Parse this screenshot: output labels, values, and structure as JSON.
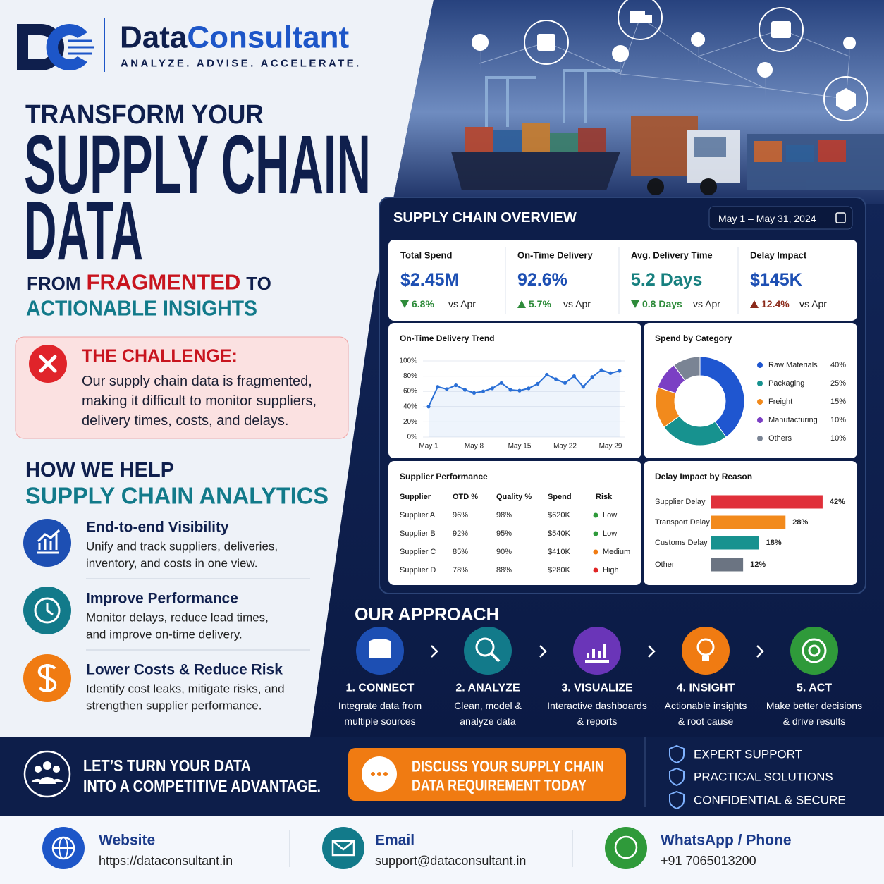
{
  "brand": {
    "name_a": "Data",
    "name_b": "Consultant",
    "tagline": "ANALYZE. ADVISE. ACCELERATE."
  },
  "hero": {
    "line_1": "TRANSFORM YOUR",
    "line_2": "SUPPLY CHAIN",
    "line_3": "DATA",
    "from": "FROM",
    "fragmented": "FRAGMENTED",
    "to": "TO",
    "insights": "ACTIONABLE INSIGHTS"
  },
  "challenge": {
    "title": "THE CHALLENGE:",
    "lines": [
      "Our supply chain data is fragmented,",
      "making it difficult to monitor suppliers,",
      "delivery times, costs, and delays."
    ]
  },
  "help": {
    "title": "HOW WE HELP",
    "subtitle": "SUPPLY CHAIN ANALYTICS",
    "items": [
      {
        "title": "End-to-end Visibility",
        "lines": [
          "Unify and track suppliers, deliveries,",
          "inventory, and costs in one view."
        ]
      },
      {
        "title": "Improve Performance",
        "lines": [
          "Monitor delays, reduce lead times,",
          "and improve on-time delivery."
        ]
      },
      {
        "title": "Lower Costs & Reduce Risk",
        "lines": [
          "Identify cost leaks, mitigate risks, and",
          "strengthen supplier performance."
        ]
      }
    ]
  },
  "dashboard": {
    "title": "SUPPLY CHAIN OVERVIEW",
    "date_range": "May 1 – May 31, 2024",
    "kpis": [
      {
        "label": "Total Spend",
        "value": "$2.45M",
        "change": "6.8%",
        "trend": "down",
        "compare": "vs Apr",
        "value_color": "#1d4fb3",
        "change_color": "#2e8b3a"
      },
      {
        "label": "On-Time Delivery",
        "value": "92.6%",
        "change": "5.7%",
        "trend": "up",
        "compare": "vs Apr",
        "value_color": "#1d4fb3",
        "change_color": "#2e8b3a"
      },
      {
        "label": "Avg. Delivery Time",
        "value": "5.2 Days",
        "change": "0.8 Days",
        "trend": "down",
        "compare": "vs Apr",
        "value_color": "#17807f",
        "change_color": "#2e8b3a"
      },
      {
        "label": "Delay Impact",
        "value": "$145K",
        "change": "12.4%",
        "trend": "up",
        "compare": "vs Apr",
        "value_color": "#1d4fb3",
        "change_color": "#8b2a1a"
      }
    ],
    "delivery_trend": {
      "type": "line",
      "title": "On-Time Delivery Trend",
      "categories": [
        "May 1",
        null,
        null,
        null,
        null,
        "May 8",
        null,
        null,
        null,
        null,
        "May 15",
        null,
        null,
        null,
        null,
        "May 22",
        null,
        null,
        null,
        null,
        "May 29",
        null
      ],
      "values": [
        40,
        66,
        63,
        68,
        62,
        58,
        60,
        64,
        71,
        62,
        61,
        64,
        70,
        82,
        76,
        71,
        80,
        66,
        79,
        88,
        84,
        87
      ],
      "ylim": [
        0,
        100
      ],
      "yticks": [
        {
          "value": 0,
          "label": "0%"
        },
        {
          "value": 20,
          "label": "20%"
        },
        {
          "value": 40,
          "label": "40%"
        },
        {
          "value": 60,
          "label": "60%"
        },
        {
          "value": 80,
          "label": "80%"
        },
        {
          "value": 100,
          "label": "100%"
        }
      ],
      "color": "#2a6fd6",
      "grid": true
    },
    "spend_by_category": {
      "type": "pie",
      "title": "Spend by Category",
      "categories": [
        "Raw Materials",
        "Packaging",
        "Freight",
        "Manufacturing",
        "Others"
      ],
      "values": [
        40,
        25,
        15,
        10,
        10
      ],
      "value_labels": [
        "40%",
        "25%",
        "15%",
        "10%",
        "10%"
      ],
      "colors": [
        "#1f56d0",
        "#17928f",
        "#f28a1c",
        "#7b3fc4",
        "#7a8494"
      ]
    },
    "supplier_performance": {
      "title": "Supplier Performance",
      "columns": [
        "Supplier",
        "OTD %",
        "Quality %",
        "Spend",
        "Risk"
      ],
      "rows": [
        [
          "Supplier A",
          "96%",
          "98%",
          "$620K",
          "Low"
        ],
        [
          "Supplier B",
          "92%",
          "95%",
          "$540K",
          "Low"
        ],
        [
          "Supplier C",
          "85%",
          "90%",
          "$410K",
          "Medium"
        ],
        [
          "Supplier D",
          "78%",
          "88%",
          "$280K",
          "High"
        ]
      ],
      "risk_colors": [
        "#2e9a3a",
        "#2e9a3a",
        "#f07b12",
        "#e02424"
      ]
    },
    "delay_by_reason": {
      "type": "bar",
      "title": "Delay Impact by Reason",
      "categories": [
        "Supplier Delay",
        "Transport Delay",
        "Customs Delay",
        "Other"
      ],
      "values": [
        42,
        28,
        18,
        12
      ],
      "value_labels": [
        "42%",
        "28%",
        "18%",
        "12%"
      ],
      "colors": [
        "#e0303a",
        "#f28a1c",
        "#17928f",
        "#6b7482"
      ]
    }
  },
  "approach": {
    "title": "OUR APPROACH",
    "steps": [
      {
        "label": "1. CONNECT",
        "lines": [
          "Integrate data from",
          "multiple sources"
        ]
      },
      {
        "label": "2. ANALYZE",
        "lines": [
          "Clean, model &",
          "analyze data"
        ]
      },
      {
        "label": "3. VISUALIZE",
        "lines": [
          "Interactive dashboards",
          "& reports"
        ]
      },
      {
        "label": "4. INSIGHT",
        "lines": [
          "Actionable insights",
          "& root cause"
        ]
      },
      {
        "label": "5. ACT",
        "lines": [
          "Make better decisions",
          "& drive results"
        ]
      }
    ]
  },
  "cta": {
    "lines": [
      "LET’S TURN YOUR DATA",
      "INTO A COMPETITIVE ADVANTAGE."
    ],
    "button_lines": [
      "DISCUSS YOUR SUPPLY CHAIN",
      "DATA REQUIREMENT TODAY"
    ],
    "features": [
      "EXPERT SUPPORT",
      "PRACTICAL SOLUTIONS",
      "CONFIDENTIAL & SECURE"
    ]
  },
  "contacts": [
    {
      "label": "Website",
      "value": "https://dataconsultant.in"
    },
    {
      "label": "Email",
      "value": "support@dataconsultant.in"
    },
    {
      "label": "WhatsApp / Phone",
      "value": "+91 7065013200"
    }
  ]
}
